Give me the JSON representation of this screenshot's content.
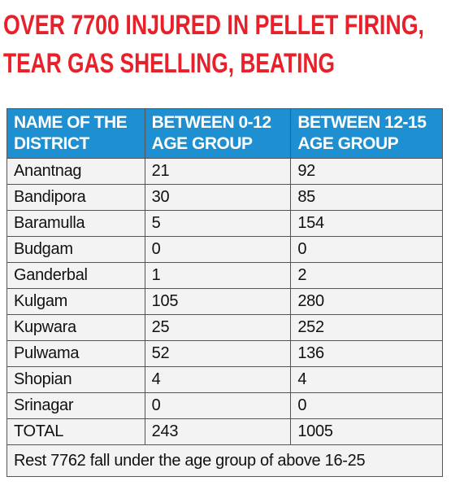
{
  "header": {
    "title_lines": [
      "OVER 7700 INJURED IN PELLET FIRING,",
      "TEAR GAS SHELLING, BEATING"
    ]
  },
  "table": {
    "columns": [
      "NAME OF THE DISTRICT",
      "BETWEEN 0-12 AGE GROUP",
      "BETWEEN 12-15 AGE GROUP"
    ],
    "rows": [
      [
        "Anantnag",
        21,
        92
      ],
      [
        "Bandipora",
        30,
        85
      ],
      [
        "Baramulla",
        5,
        154
      ],
      [
        "Budgam",
        0,
        0
      ],
      [
        "Ganderbal",
        1,
        2
      ],
      [
        "Kulgam",
        105,
        280
      ],
      [
        "Kupwara",
        25,
        252
      ],
      [
        "Pulwama",
        52,
        136
      ],
      [
        "Shopian",
        4,
        4
      ],
      [
        "Srinagar",
        0,
        0
      ],
      [
        "TOTAL",
        243,
        1005
      ]
    ],
    "footnote": "Rest 7762 fall under the age group of above 16-25"
  }
}
